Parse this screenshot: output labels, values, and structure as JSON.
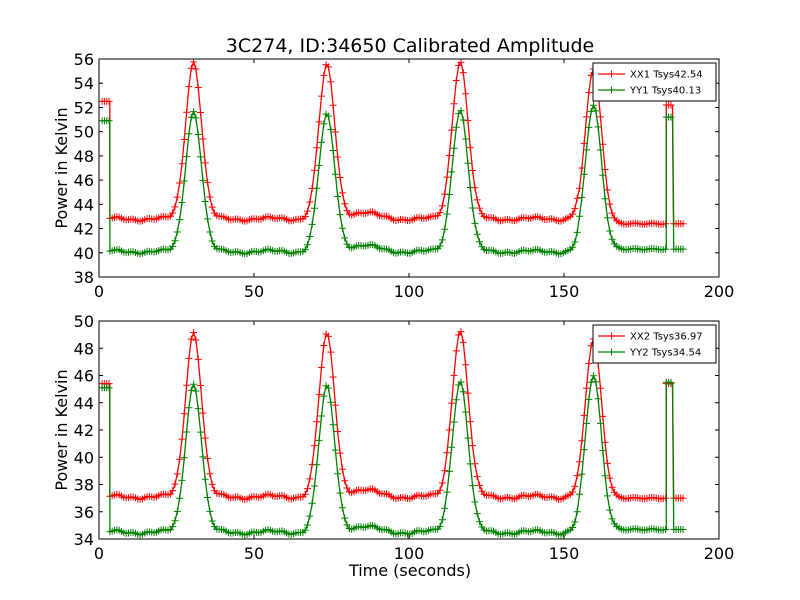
{
  "figure": {
    "title": "3C274, ID:34650 Calibrated Amplitude",
    "xlabel": "Time (seconds)"
  },
  "chart_data": [
    {
      "type": "line",
      "title": "3C274, ID:34650 Calibrated Amplitude",
      "xlabel": "",
      "ylabel": "Power in Kelvin",
      "xlim": [
        0,
        200
      ],
      "ylim": [
        38,
        56
      ],
      "xticks": [
        0,
        50,
        100,
        150,
        200
      ],
      "yticks": [
        38,
        40,
        42,
        44,
        46,
        48,
        50,
        52,
        54,
        56
      ],
      "grid": false,
      "legend_position": "top-right",
      "series": [
        {
          "name": "XX1 Tsys42.54",
          "color": "#ff0000",
          "baseline": 42.8,
          "peaks": [
            {
              "x": 30.5,
              "y": 55.8
            },
            {
              "x": 73.5,
              "y": 55.4
            },
            {
              "x": 116.5,
              "y": 55.8
            },
            {
              "x": 159.5,
              "y": 55.6
            }
          ],
          "early_segment": {
            "x": [
              1,
              3.5
            ],
            "y": 52.5
          },
          "late_segment": {
            "x": [
              183,
              185
            ],
            "y": 52.2
          },
          "bump": {
            "x": 85,
            "y": 43.3
          },
          "tail_level": 42.4,
          "tail_end": 189
        },
        {
          "name": "YY1 Tsys40.13",
          "color": "#008000",
          "baseline": 40.1,
          "peaks": [
            {
              "x": 30.5,
              "y": 51.7
            },
            {
              "x": 73.5,
              "y": 51.3
            },
            {
              "x": 116.5,
              "y": 51.8
            },
            {
              "x": 159.5,
              "y": 52.0
            }
          ],
          "early_segment": {
            "x": [
              1,
              3.5
            ],
            "y": 50.9
          },
          "late_segment": {
            "x": [
              183,
              185
            ],
            "y": 51.2
          },
          "bump": {
            "x": 85,
            "y": 40.6
          },
          "tail_level": 40.3,
          "tail_end": 189
        }
      ]
    },
    {
      "type": "line",
      "title": "",
      "xlabel": "Time (seconds)",
      "ylabel": "Power in Kelvin",
      "xlim": [
        0,
        200
      ],
      "ylim": [
        34,
        50
      ],
      "xticks": [
        0,
        50,
        100,
        150,
        200
      ],
      "yticks": [
        34,
        36,
        38,
        40,
        42,
        44,
        46,
        48,
        50
      ],
      "grid": false,
      "legend_position": "top-right",
      "series": [
        {
          "name": "XX2 Tsys36.97",
          "color": "#ff0000",
          "baseline": 37.1,
          "peaks": [
            {
              "x": 30.5,
              "y": 49.2
            },
            {
              "x": 73.5,
              "y": 48.9
            },
            {
              "x": 116.5,
              "y": 49.3
            },
            {
              "x": 159.5,
              "y": 48.8
            }
          ],
          "early_segment": {
            "x": [
              1,
              3.5
            ],
            "y": 45.4
          },
          "late_segment": {
            "x": [
              183,
              185
            ],
            "y": 45.4
          },
          "bump": {
            "x": 85,
            "y": 37.6
          },
          "tail_level": 37.0,
          "tail_end": 189
        },
        {
          "name": "YY2 Tsys34.54",
          "color": "#008000",
          "baseline": 34.5,
          "peaks": [
            {
              "x": 30.5,
              "y": 45.4
            },
            {
              "x": 73.5,
              "y": 45.1
            },
            {
              "x": 116.5,
              "y": 45.6
            },
            {
              "x": 159.5,
              "y": 45.8
            }
          ],
          "early_segment": {
            "x": [
              1,
              3.5
            ],
            "y": 45.1
          },
          "late_segment": {
            "x": [
              183,
              185
            ],
            "y": 45.5
          },
          "bump": {
            "x": 85,
            "y": 34.9
          },
          "tail_level": 34.7,
          "tail_end": 189
        }
      ]
    }
  ]
}
